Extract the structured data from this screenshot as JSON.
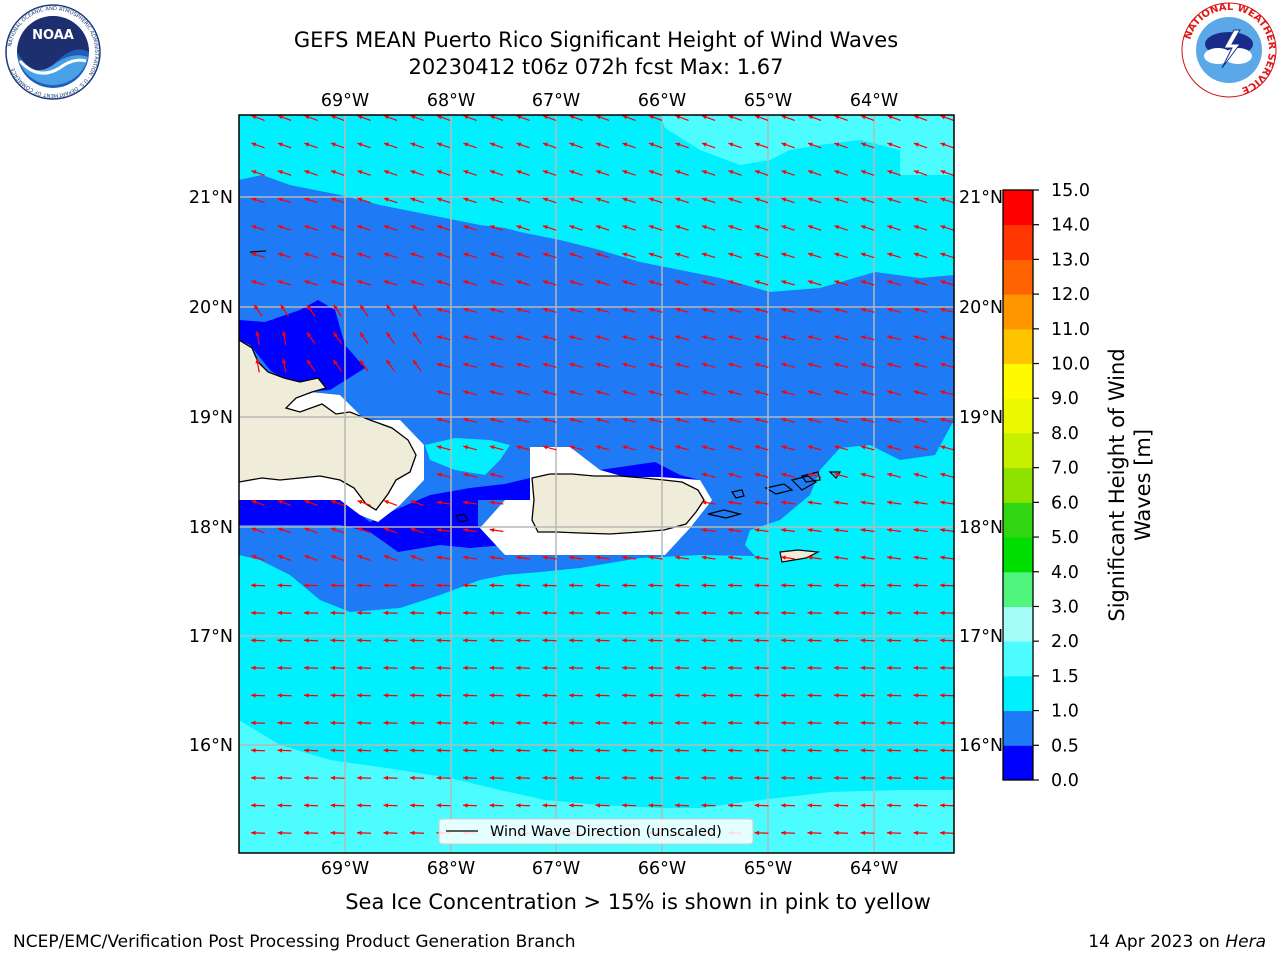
{
  "header": {
    "title_line1": "GEFS MEAN Puerto Rico Significant Height of Wind Waves",
    "title_line2": "20230412 t06z 072h fcst   Max: 1.67"
  },
  "logos": {
    "left": {
      "text": "NOAA",
      "ring_text": "NATIONAL OCEANIC AND ATMOSPHERIC ADMINISTRATION · U.S. DEPARTMENT OF COMMERCE"
    },
    "right": {
      "ring_text": "NATIONAL WEATHER SERVICE"
    }
  },
  "map": {
    "lon_labels": [
      "69°W",
      "68°W",
      "67°W",
      "66°W",
      "65°W",
      "64°W"
    ],
    "lat_labels": [
      "21°N",
      "20°N",
      "19°N",
      "18°N",
      "17°N",
      "16°N"
    ],
    "legend_text": "Wind Wave Direction (unscaled)",
    "colors": {
      "land": "#efedd9",
      "c0": "#0000ff",
      "c05": "#1f7af5",
      "c10": "#00f0ff",
      "c15": "#4dfcff",
      "c20": "#a5fdf9",
      "arrow": "#ff0000",
      "grid": "#b8b8b8"
    }
  },
  "colorbar": {
    "label_line1": "Significant Height of Wind",
    "label_line2": "Waves [m]",
    "ticks": [
      "0.0",
      "0.5",
      "1.0",
      "1.5",
      "2.0",
      "3.0",
      "4.0",
      "5.0",
      "6.0",
      "7.0",
      "8.0",
      "9.0",
      "10.0",
      "11.0",
      "12.0",
      "13.0",
      "14.0",
      "15.0"
    ],
    "colors": [
      "#0000ff",
      "#1f7af5",
      "#00f0ff",
      "#4dfcff",
      "#a5fdf9",
      "#50f57e",
      "#00de00",
      "#31d613",
      "#8fe200",
      "#c6f000",
      "#ecf800",
      "#fffa00",
      "#ffc400",
      "#ff9600",
      "#ff6400",
      "#ff3700",
      "#ff0000"
    ]
  },
  "footer": {
    "sea_ice_note": "Sea Ice Concentration > 15% is shown in pink to yellow",
    "branch": "NCEP/EMC/Verification Post Processing Product Generation Branch",
    "date": "14 Apr 2023 on",
    "machine": "Hera"
  }
}
